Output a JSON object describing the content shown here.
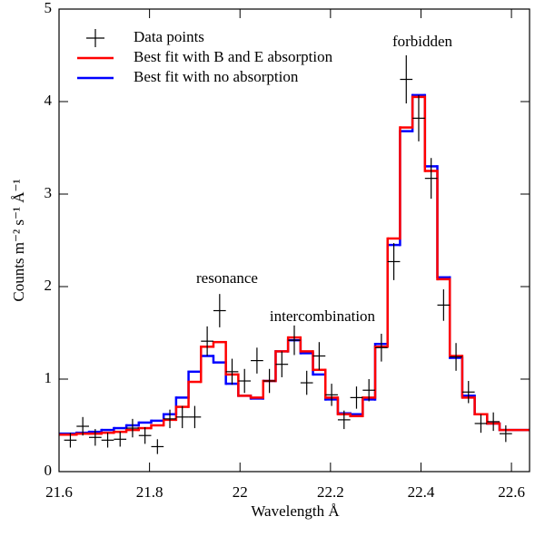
{
  "chart_data": {
    "type": "line",
    "xlabel": "Wavelength Å",
    "ylabel": "Counts m⁻² s⁻¹ Å⁻¹",
    "xlim": [
      21.6,
      22.64
    ],
    "ylim": [
      0,
      5
    ],
    "xticks": [
      21.6,
      21.8,
      22,
      22.2,
      22.4,
      22.6
    ],
    "yticks": [
      0,
      1,
      2,
      3,
      4,
      5
    ],
    "legend": "upper-left",
    "annotations": [
      "resonance",
      "intercombination",
      "forbidden"
    ],
    "x": [
      21.625,
      21.6525,
      21.68,
      21.7075,
      21.735,
      21.7625,
      21.79,
      21.8175,
      21.845,
      21.8725,
      21.9,
      21.9275,
      21.955,
      21.9825,
      22.01,
      22.0375,
      22.065,
      22.0925,
      22.12,
      22.1475,
      22.175,
      22.2025,
      22.23,
      22.2575,
      22.285,
      22.3125,
      22.34,
      22.3675,
      22.395,
      22.4225,
      22.45,
      22.4775,
      22.505,
      22.5325,
      22.56,
      22.5875
    ],
    "series": [
      {
        "name": "Data points",
        "style": "errorbar",
        "color": "#000000",
        "values": [
          0.34,
          0.49,
          0.37,
          0.34,
          0.35,
          0.47,
          0.39,
          0.27,
          0.57,
          0.59,
          0.59,
          1.41,
          1.74,
          1.08,
          0.98,
          1.2,
          0.98,
          1.16,
          1.42,
          0.96,
          1.25,
          0.83,
          0.56,
          0.8,
          0.88,
          1.34,
          2.27,
          4.24,
          3.82,
          3.17,
          1.8,
          1.24,
          0.86,
          0.52,
          0.54,
          0.41
        ],
        "yerr": [
          0.08,
          0.1,
          0.09,
          0.08,
          0.08,
          0.1,
          0.09,
          0.08,
          0.1,
          0.12,
          0.12,
          0.16,
          0.18,
          0.14,
          0.13,
          0.14,
          0.13,
          0.14,
          0.16,
          0.13,
          0.15,
          0.12,
          0.1,
          0.12,
          0.12,
          0.15,
          0.2,
          0.26,
          0.25,
          0.22,
          0.17,
          0.15,
          0.12,
          0.1,
          0.1,
          0.09
        ]
      },
      {
        "name": "Best fit with B and E absorption",
        "style": "step",
        "color": "#ff0000",
        "values": [
          0.4,
          0.41,
          0.41,
          0.42,
          0.43,
          0.45,
          0.47,
          0.5,
          0.56,
          0.7,
          0.97,
          1.35,
          1.4,
          1.05,
          0.82,
          0.8,
          0.98,
          1.3,
          1.45,
          1.3,
          1.1,
          0.8,
          0.62,
          0.6,
          0.8,
          1.35,
          2.52,
          3.72,
          4.05,
          3.25,
          2.08,
          1.25,
          0.8,
          0.62,
          0.52,
          0.45
        ]
      },
      {
        "name": "Best fit with no absorption",
        "style": "step",
        "color": "#0000ff",
        "values": [
          0.41,
          0.42,
          0.43,
          0.45,
          0.47,
          0.5,
          0.53,
          0.55,
          0.62,
          0.8,
          1.08,
          1.25,
          1.18,
          0.95,
          0.82,
          0.79,
          0.98,
          1.3,
          1.42,
          1.28,
          1.05,
          0.78,
          0.63,
          0.62,
          0.78,
          1.38,
          2.45,
          3.68,
          4.07,
          3.3,
          2.1,
          1.23,
          0.82,
          0.62,
          0.52,
          0.45
        ]
      }
    ]
  }
}
